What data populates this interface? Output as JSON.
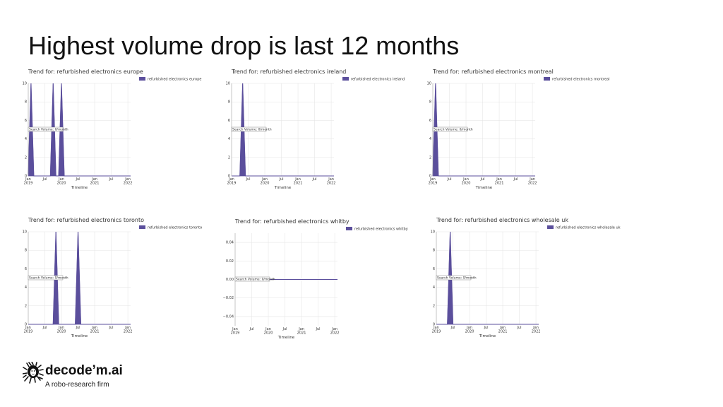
{
  "slide": {
    "title": "Highest volume drop is last 12 months"
  },
  "brand": {
    "name": "decode’m.ai",
    "tagline": "A robo-research firm",
    "mark_icon": "lion-head-icon",
    "accent": "#5b4f9c"
  },
  "colors": {
    "series": "#5b4f9c",
    "grid": "#e2e2e2"
  },
  "chart_data": [
    {
      "type": "area",
      "title": "Trend for: refurbished electronics europe",
      "xlabel": "Timeline",
      "annotation": "Search Volume: 0/month",
      "x_ticks": [
        {
          "t": 0,
          "label": "Jan\n2019"
        },
        {
          "t": 6,
          "label": "Jul"
        },
        {
          "t": 12,
          "label": "Jan\n2020"
        },
        {
          "t": 18,
          "label": "Jul"
        },
        {
          "t": 24,
          "label": "Jan\n2021"
        },
        {
          "t": 30,
          "label": "Jul"
        },
        {
          "t": 36,
          "label": "Jan\n2022"
        }
      ],
      "x_range": [
        0,
        37
      ],
      "y_ticks": [
        "0",
        "2",
        "4",
        "6",
        "8",
        "10"
      ],
      "ylim": [
        0,
        10
      ],
      "legend": [
        "refurbished electronics europe"
      ],
      "series": [
        {
          "name": "refurbished electronics europe",
          "points": [
            [
              0,
              0
            ],
            [
              1,
              10
            ],
            [
              2,
              0
            ],
            [
              8,
              0
            ],
            [
              9,
              10
            ],
            [
              10,
              0
            ],
            [
              11,
              0
            ],
            [
              12,
              10
            ],
            [
              13,
              0
            ],
            [
              37,
              0
            ]
          ]
        }
      ]
    },
    {
      "type": "area",
      "title": "Trend for: refurbished electronics ireland",
      "xlabel": "Timeline",
      "annotation": "Search Volume: 0/month",
      "x_ticks": [
        {
          "t": 0,
          "label": "Jan\n2019"
        },
        {
          "t": 6,
          "label": "Jul"
        },
        {
          "t": 12,
          "label": "Jan\n2020"
        },
        {
          "t": 18,
          "label": "Jul"
        },
        {
          "t": 24,
          "label": "Jan\n2021"
        },
        {
          "t": 30,
          "label": "Jul"
        },
        {
          "t": 36,
          "label": "Jan\n2022"
        }
      ],
      "x_range": [
        0,
        37
      ],
      "y_ticks": [
        "0",
        "2",
        "4",
        "6",
        "8",
        "10"
      ],
      "ylim": [
        0,
        10
      ],
      "legend": [
        "refurbished electronics ireland"
      ],
      "series": [
        {
          "name": "refurbished electronics ireland",
          "points": [
            [
              0,
              0
            ],
            [
              3,
              0
            ],
            [
              4,
              10
            ],
            [
              5,
              0
            ],
            [
              37,
              0
            ]
          ]
        }
      ]
    },
    {
      "type": "area",
      "title": "Trend for: refurbished electronics montreal",
      "xlabel": "Timeline",
      "annotation": "Search Volume: 0/month",
      "x_ticks": [
        {
          "t": 0,
          "label": "Jan\n2019"
        },
        {
          "t": 6,
          "label": "Jul"
        },
        {
          "t": 12,
          "label": "Jan\n2020"
        },
        {
          "t": 18,
          "label": "Jul"
        },
        {
          "t": 24,
          "label": "Jan\n2021"
        },
        {
          "t": 30,
          "label": "Jul"
        },
        {
          "t": 36,
          "label": "Jan\n2022"
        }
      ],
      "x_range": [
        0,
        37
      ],
      "y_ticks": [
        "0",
        "2",
        "4",
        "6",
        "8",
        "10"
      ],
      "ylim": [
        0,
        10
      ],
      "legend": [
        "refurbished electronics montreal"
      ],
      "series": [
        {
          "name": "refurbished electronics montreal",
          "points": [
            [
              0,
              0
            ],
            [
              1,
              10
            ],
            [
              2,
              0
            ],
            [
              37,
              0
            ]
          ]
        }
      ]
    },
    {
      "type": "area",
      "title": "Trend for: refurbished electronics toronto",
      "xlabel": "Timeline",
      "annotation": "Search Volume: 0/month",
      "x_ticks": [
        {
          "t": 0,
          "label": "Jan\n2019"
        },
        {
          "t": 6,
          "label": "Jul"
        },
        {
          "t": 12,
          "label": "Jan\n2020"
        },
        {
          "t": 18,
          "label": "Jul"
        },
        {
          "t": 24,
          "label": "Jan\n2021"
        },
        {
          "t": 30,
          "label": "Jul"
        },
        {
          "t": 36,
          "label": "Jan\n2022"
        }
      ],
      "x_range": [
        0,
        37
      ],
      "y_ticks": [
        "0",
        "2",
        "4",
        "6",
        "8",
        "10"
      ],
      "ylim": [
        0,
        10
      ],
      "legend": [
        "refurbished electronics toronto"
      ],
      "series": [
        {
          "name": "refurbished electronics toronto",
          "points": [
            [
              0,
              0
            ],
            [
              9,
              0
            ],
            [
              10,
              10
            ],
            [
              11,
              0
            ],
            [
              17,
              0
            ],
            [
              18,
              10
            ],
            [
              19,
              0
            ],
            [
              37,
              0
            ]
          ]
        }
      ]
    },
    {
      "type": "area",
      "title": "Trend for: refurbished electronics whitby",
      "xlabel": "Timeline",
      "annotation": "Search Volume: 0/month",
      "x_ticks": [
        {
          "t": 0,
          "label": "Jan\n2019"
        },
        {
          "t": 6,
          "label": "Jul"
        },
        {
          "t": 12,
          "label": "Jan\n2020"
        },
        {
          "t": 18,
          "label": "Jul"
        },
        {
          "t": 24,
          "label": "Jan\n2021"
        },
        {
          "t": 30,
          "label": "Jul"
        },
        {
          "t": 36,
          "label": "Jan\n2022"
        }
      ],
      "x_range": [
        0,
        37
      ],
      "y_ticks": [
        "−0.04",
        "−0.02",
        "0.00",
        "0.02",
        "0.04"
      ],
      "ylim": [
        -0.05,
        0.05
      ],
      "legend": [
        "refurbished electronics whitby"
      ],
      "series": [
        {
          "name": "refurbished electronics whitby",
          "points": [
            [
              0,
              0
            ],
            [
              37,
              0
            ]
          ]
        }
      ]
    },
    {
      "type": "area",
      "title": "Trend for: refurbished electronics wholesale uk",
      "xlabel": "Timeline",
      "annotation": "Search Volume: 0/month",
      "x_ticks": [
        {
          "t": 0,
          "label": "Jan\n2019"
        },
        {
          "t": 6,
          "label": "Jul"
        },
        {
          "t": 12,
          "label": "Jan\n2020"
        },
        {
          "t": 18,
          "label": "Jul"
        },
        {
          "t": 24,
          "label": "Jan\n2021"
        },
        {
          "t": 30,
          "label": "Jul"
        },
        {
          "t": 36,
          "label": "Jan\n2022"
        }
      ],
      "x_range": [
        0,
        37
      ],
      "y_ticks": [
        "0",
        "2",
        "4",
        "6",
        "8",
        "10"
      ],
      "ylim": [
        0,
        10
      ],
      "legend": [
        "refurbished electronics wholesale uk"
      ],
      "series": [
        {
          "name": "refurbished electronics wholesale uk",
          "points": [
            [
              0,
              0
            ],
            [
              4,
              0
            ],
            [
              5,
              10
            ],
            [
              6,
              0
            ],
            [
              37,
              0
            ]
          ]
        }
      ]
    }
  ]
}
